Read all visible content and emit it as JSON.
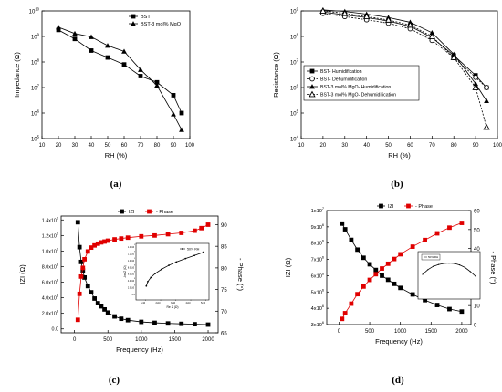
{
  "chart_data": [
    {
      "id": "a",
      "type": "line",
      "panel_label": "(a)",
      "xlabel": "RH (%)",
      "ylabel": "Impedance (Ω)",
      "xlim": [
        10,
        100
      ],
      "xticks": [
        10,
        20,
        30,
        40,
        50,
        60,
        70,
        80,
        90,
        100
      ],
      "ylim_log": [
        5,
        10
      ],
      "yscale": "log",
      "yticks": [
        "10^5",
        "10^6",
        "10^7",
        "10^8",
        "10^9",
        "10^10"
      ],
      "legend_position": "top-right",
      "series": [
        {
          "name": "BST",
          "marker": "square",
          "x": [
            20,
            30,
            40,
            50,
            60,
            70,
            80,
            90,
            95
          ],
          "y": [
            1800000000.0,
            800000000.0,
            280000000.0,
            150000000.0,
            80000000.0,
            28000000.0,
            16000000.0,
            5000000.0,
            1000000.0
          ]
        },
        {
          "name": "BST-3 mol% MgO",
          "marker": "triangle",
          "x": [
            20,
            30,
            40,
            50,
            60,
            70,
            80,
            90,
            95
          ],
          "y": [
            2300000000.0,
            1300000000.0,
            960000000.0,
            440000000.0,
            260000000.0,
            50000000.0,
            12000000.0,
            900000.0,
            220000.0
          ]
        }
      ]
    },
    {
      "id": "b",
      "type": "line",
      "panel_label": "(b)",
      "xlabel": "RH (%)",
      "ylabel": "Resistance (Ω)",
      "xlim": [
        10,
        100
      ],
      "xticks": [
        10,
        20,
        30,
        40,
        50,
        60,
        70,
        80,
        90,
        100
      ],
      "ylim_log": [
        4,
        9
      ],
      "yscale": "log",
      "yticks": [
        "10^4",
        "10^5",
        "10^6",
        "10^7",
        "10^8",
        "10^9"
      ],
      "legend_position": "bottom-left",
      "series": [
        {
          "name": "BST- Humidification",
          "marker": "square",
          "dash": false,
          "x": [
            20,
            30,
            40,
            50,
            60,
            70,
            80,
            90,
            95
          ],
          "y": [
            900000000.0,
            700000000.0,
            550000000.0,
            400000000.0,
            250000000.0,
            90000000.0,
            18000000.0,
            3000000.0,
            1000000.0
          ]
        },
        {
          "name": "BST- Dehumidification",
          "marker": "circle-open",
          "dash": true,
          "x": [
            20,
            30,
            40,
            50,
            60,
            70,
            80,
            90,
            95
          ],
          "y": [
            800000000.0,
            600000000.0,
            450000000.0,
            330000000.0,
            200000000.0,
            70000000.0,
            15000000.0,
            2500000.0,
            1000000.0
          ]
        },
        {
          "name": "BST-3 mol% MgO- Humidification",
          "marker": "triangle",
          "dash": false,
          "x": [
            20,
            30,
            40,
            50,
            60,
            70,
            80,
            90,
            95
          ],
          "y": [
            1100000000.0,
            950000000.0,
            750000000.0,
            550000000.0,
            360000000.0,
            140000000.0,
            20000000.0,
            1400000.0,
            300000.0
          ]
        },
        {
          "name": "BST-3 mol% MgO- Dehumidification",
          "marker": "triangle-open",
          "dash": true,
          "x": [
            20,
            30,
            40,
            50,
            60,
            70,
            80,
            90,
            95
          ],
          "y": [
            1000000000.0,
            800000000.0,
            600000000.0,
            440000000.0,
            280000000.0,
            100000000.0,
            15000000.0,
            1000000.0,
            28000.0
          ]
        }
      ]
    },
    {
      "id": "c",
      "type": "line",
      "panel_label": "(c)",
      "xlabel": "Frequency (Hz)",
      "ylabel": "IZI (Ω)",
      "ylabel_right": "- Phase (°)",
      "xlim": [
        -200,
        2150
      ],
      "xticks": [
        0,
        500,
        1000,
        1500,
        2000
      ],
      "ylim": [
        -50000000.0,
        1450000000.0
      ],
      "yticks": [
        0,
        200000000.0,
        400000000.0,
        600000000.0,
        800000000.0,
        1000000000.0,
        1200000000.0,
        1400000000.0
      ],
      "ytick_labels": [
        "0.0",
        "2.0x10^8",
        "4.0x10^8",
        "6.0x10^8",
        "8.0x10^8",
        "1.0x10^9",
        "1.2x10^9",
        "1.4x10^9"
      ],
      "y2lim": [
        65,
        92
      ],
      "y2ticks": [
        65,
        70,
        75,
        80,
        85,
        90
      ],
      "legend_position": "top-center",
      "series": [
        {
          "name": "IZI",
          "axis": "left",
          "color": "#000000",
          "x": [
            50,
            75,
            100,
            125,
            150,
            200,
            250,
            300,
            350,
            400,
            450,
            500,
            600,
            700,
            800,
            1000,
            1200,
            1400,
            1600,
            1800,
            2000
          ],
          "y": [
            1370000000.0,
            1050000000.0,
            860000000.0,
            750000000.0,
            660000000.0,
            550000000.0,
            470000000.0,
            390000000.0,
            330000000.0,
            290000000.0,
            250000000.0,
            210000000.0,
            160000000.0,
            130000000.0,
            112000000.0,
            90000000.0,
            78000000.0,
            70000000.0,
            65000000.0,
            60000000.0,
            55000000.0
          ]
        },
        {
          "name": "- Phase",
          "axis": "right",
          "color": "#e00000",
          "x": [
            50,
            75,
            100,
            125,
            150,
            200,
            250,
            300,
            350,
            400,
            450,
            500,
            600,
            700,
            800,
            1000,
            1200,
            1400,
            1600,
            1800,
            1900,
            2000
          ],
          "y": [
            68,
            74,
            78,
            80,
            82,
            83.8,
            84.7,
            85.2,
            85.6,
            85.9,
            86.1,
            86.3,
            86.6,
            86.8,
            87.0,
            87.3,
            87.5,
            87.8,
            88.1,
            88.6,
            89.2,
            90
          ]
        }
      ],
      "inset": {
        "legend": "50% RH",
        "xlabel": "Re Z (Ω)",
        "ylabel": "-Im Z (Ω)",
        "xtick_labels": [
          "1x10^8",
          "2x10^8",
          "3x10^8",
          "4x10^8",
          "5x10^8"
        ],
        "ytick_labels": [
          "0.0",
          "2.0x10^8",
          "4.0x10^8",
          "6.0x10^8",
          "8.0x10^8",
          "1.0x10^9",
          "1.2x10^9",
          "1.4x10^9"
        ],
        "x": [
          120000000.0,
          130000000.0,
          150000000.0,
          180000000.0,
          220000000.0,
          270000000.0,
          320000000.0,
          380000000.0,
          440000000.0,
          500000000.0
        ],
        "y": [
          250000000.0,
          380000000.0,
          500000000.0,
          620000000.0,
          740000000.0,
          860000000.0,
          960000000.0,
          1060000000.0,
          1150000000.0,
          1250000000.0
        ]
      }
    },
    {
      "id": "d",
      "type": "line",
      "panel_label": "(d)",
      "xlabel": "Frequency (Hz)",
      "ylabel": "IZI (Ω)",
      "ylabel_right": "- Phase (°)",
      "xlim": [
        -200,
        2150
      ],
      "xticks": [
        0,
        500,
        1000,
        1500,
        2000
      ],
      "ylim": [
        3000000.0,
        10000000.0
      ],
      "yticks": [
        3000000.0,
        4000000.0,
        5000000.0,
        6000000.0,
        7000000.0,
        8000000.0,
        9000000.0,
        10000000.0
      ],
      "ytick_labels": [
        "3x10^6",
        "4x10^6",
        "5x10^6",
        "6x10^6",
        "7x10^6",
        "8x10^6",
        "9x10^6",
        "1x10^7"
      ],
      "y2lim": [
        0,
        60
      ],
      "y2ticks": [
        0,
        10,
        20,
        30,
        40,
        50,
        60
      ],
      "legend_position": "top-center",
      "series": [
        {
          "name": "IZI",
          "axis": "left",
          "color": "#000000",
          "x": [
            50,
            100,
            200,
            300,
            400,
            500,
            600,
            700,
            800,
            900,
            1000,
            1200,
            1400,
            1600,
            1800,
            2000
          ],
          "y": [
            9200000.0,
            8850000.0,
            8200000.0,
            7600000.0,
            7100000.0,
            6700000.0,
            6350000.0,
            6000000.0,
            5750000.0,
            5500000.0,
            5250000.0,
            4850000.0,
            4500000.0,
            4200000.0,
            3950000.0,
            3800000.0
          ]
        },
        {
          "name": "- Phase",
          "axis": "right",
          "color": "#e00000",
          "x": [
            50,
            100,
            200,
            300,
            400,
            500,
            600,
            700,
            800,
            900,
            1000,
            1200,
            1400,
            1600,
            1800,
            2000
          ],
          "y": [
            3,
            6,
            11,
            16,
            20,
            23.5,
            26.5,
            29.5,
            32,
            34.5,
            37,
            41,
            44.5,
            48,
            51,
            53.5
          ]
        }
      ],
      "inset": {
        "legend": "50% RH",
        "x": [
          0,
          0.1,
          0.2,
          0.3,
          0.4,
          0.5,
          0.6,
          0.7,
          0.8,
          0.9,
          1.0
        ],
        "y": [
          0.55,
          0.68,
          0.77,
          0.82,
          0.85,
          0.86,
          0.85,
          0.81,
          0.74,
          0.63,
          0.5
        ]
      }
    }
  ]
}
